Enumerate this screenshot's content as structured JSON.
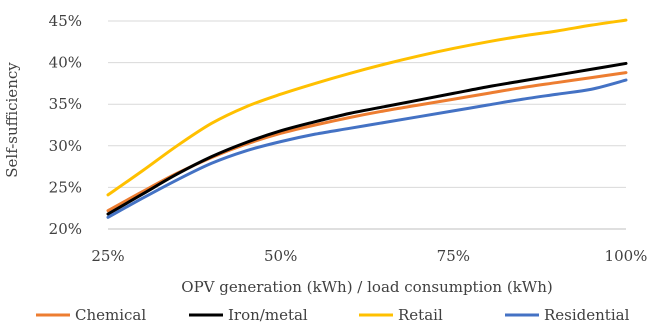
{
  "chart_data": {
    "type": "line",
    "title": "",
    "xlabel": "OPV generation (kWh) / load consumption (kWh)",
    "ylabel": "Self-sufficiency",
    "xlim": [
      0.25,
      1.0
    ],
    "ylim": [
      0.2,
      0.45
    ],
    "x_ticks": [
      0.25,
      0.5,
      0.75,
      1.0
    ],
    "x_tick_labels": [
      "25%",
      "50%",
      "75%",
      "100%"
    ],
    "y_ticks": [
      0.2,
      0.25,
      0.3,
      0.35,
      0.4,
      0.45
    ],
    "y_tick_labels": [
      "20%",
      "25%",
      "30%",
      "35%",
      "40%",
      "45%"
    ],
    "grid": "horizontal",
    "legend_position": "bottom",
    "x": [
      0.25,
      0.3,
      0.35,
      0.4,
      0.45,
      0.5,
      0.55,
      0.6,
      0.65,
      0.7,
      0.75,
      0.8,
      0.85,
      0.9,
      0.95,
      1.0
    ],
    "series": [
      {
        "name": "Chemical",
        "color": "#ED7D31",
        "values": [
          0.222,
          0.245,
          0.267,
          0.286,
          0.302,
          0.315,
          0.325,
          0.334,
          0.342,
          0.349,
          0.356,
          0.363,
          0.37,
          0.376,
          0.382,
          0.388
        ]
      },
      {
        "name": "Iron/metal",
        "color": "#000000",
        "values": [
          0.218,
          0.242,
          0.266,
          0.287,
          0.304,
          0.318,
          0.329,
          0.339,
          0.347,
          0.355,
          0.363,
          0.371,
          0.378,
          0.385,
          0.392,
          0.399
        ]
      },
      {
        "name": "Retail",
        "color": "#FFC000",
        "values": [
          0.241,
          0.27,
          0.3,
          0.327,
          0.347,
          0.362,
          0.375,
          0.387,
          0.398,
          0.408,
          0.417,
          0.425,
          0.432,
          0.438,
          0.445,
          0.451
        ]
      },
      {
        "name": "Residential",
        "color": "#4472C4",
        "values": [
          0.214,
          0.237,
          0.259,
          0.279,
          0.294,
          0.305,
          0.314,
          0.321,
          0.328,
          0.335,
          0.342,
          0.349,
          0.356,
          0.362,
          0.368,
          0.379
        ]
      }
    ]
  }
}
